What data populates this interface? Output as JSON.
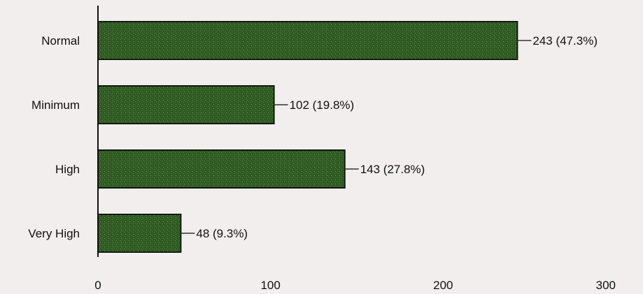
{
  "chart_data": {
    "type": "bar",
    "orientation": "horizontal",
    "categories": [
      "Normal",
      "Minimum",
      "High",
      "Very High"
    ],
    "values": [
      243,
      102,
      143,
      48
    ],
    "value_labels": [
      "243 (47.3%)",
      "102 (19.8%)",
      "143 (27.8%)",
      "48 (9.3%)"
    ],
    "xlim": [
      0,
      300
    ],
    "xticks": [
      "0",
      "100",
      "200",
      "300"
    ],
    "grid": false,
    "colors": {
      "bar": "#2f5a23",
      "bar_edge": "#101a0d",
      "bar_speckle": "#4d7a3b",
      "axis": "#111111"
    }
  }
}
